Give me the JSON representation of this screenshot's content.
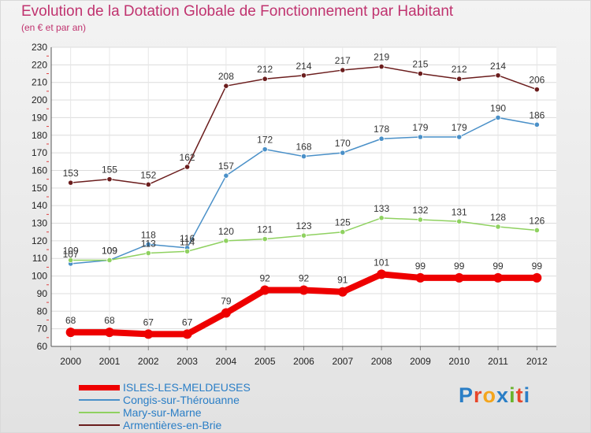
{
  "header": {
    "title": "Evolution de la Dotation Globale de Fonctionnement par Habitant",
    "subtitle": "(en € et par an)"
  },
  "brand": {
    "letters": [
      "P",
      "r",
      "o",
      "x",
      "i",
      "t",
      "i"
    ],
    "colors": [
      "#2a7ec6",
      "#e8462a",
      "#f4a51c",
      "#2a7ec6",
      "#6ab42c",
      "#e8462a",
      "#2a7ec6"
    ]
  },
  "chart_data": {
    "type": "line",
    "title": "Evolution de la Dotation Globale de Fonctionnement par Habitant",
    "subtitle": "(en € et par an)",
    "xlabel": "",
    "ylabel": "",
    "x": [
      2000,
      2001,
      2002,
      2003,
      2004,
      2005,
      2006,
      2007,
      2008,
      2009,
      2010,
      2011,
      2012
    ],
    "ylim": [
      60,
      230
    ],
    "yticks": [
      60,
      70,
      80,
      90,
      100,
      110,
      120,
      130,
      140,
      150,
      160,
      170,
      180,
      190,
      200,
      210,
      220,
      230
    ],
    "grid": true,
    "legend_position": "bottom-left",
    "series": [
      {
        "name": "Armentières-en-Brie",
        "color": "#6b1d1d",
        "emphasis": false,
        "values": [
          153,
          155,
          152,
          162,
          208,
          212,
          214,
          217,
          219,
          215,
          212,
          214,
          206
        ]
      },
      {
        "name": "Congis-sur-Thérouanne",
        "color": "#4a90c8",
        "emphasis": false,
        "values": [
          107,
          109,
          118,
          116,
          157,
          172,
          168,
          170,
          178,
          179,
          179,
          190,
          186
        ]
      },
      {
        "name": "Mary-sur-Marne",
        "color": "#8fd160",
        "emphasis": false,
        "values": [
          109,
          109,
          113,
          114,
          120,
          121,
          123,
          125,
          133,
          132,
          131,
          128,
          126
        ]
      },
      {
        "name": "ISLES-LES-MELDEUSES",
        "color": "#ee0000",
        "emphasis": true,
        "values": [
          68,
          68,
          67,
          67,
          79,
          92,
          92,
          91,
          101,
          99,
          99,
          99,
          99
        ]
      }
    ],
    "legend_order": [
      "ISLES-LES-MELDEUSES",
      "Congis-sur-Thérouanne",
      "Mary-sur-Marne",
      "Armentières-en-Brie"
    ]
  }
}
